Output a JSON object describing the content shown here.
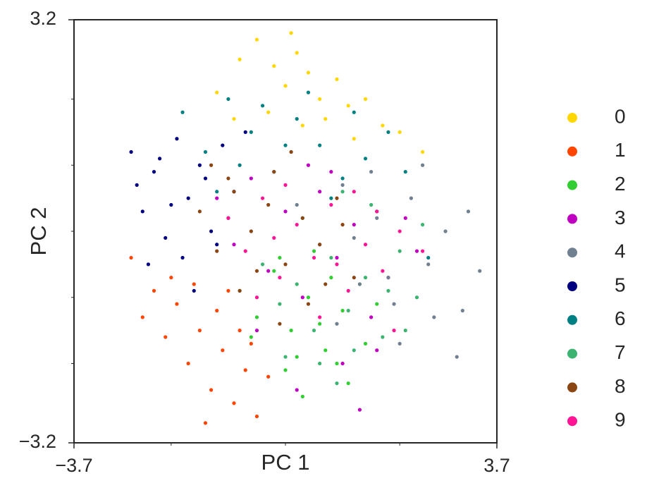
{
  "chart_data": {
    "type": "scatter",
    "xlabel": "PC 1",
    "ylabel": "PC 2",
    "xlim": [
      -3.7,
      3.7
    ],
    "ylim": [
      -3.2,
      3.2
    ],
    "xticks": [
      {
        "value": -3.7,
        "label": "−3.7"
      },
      3.7
    ],
    "yticks": [
      {
        "value": -3.2,
        "label": "−3.2"
      },
      3.2
    ],
    "xminor_ticks": [
      -2,
      0,
      2
    ],
    "yminor_ticks": [
      -2,
      -1,
      0,
      1,
      2
    ],
    "grid": false,
    "legend": "right",
    "series": [
      {
        "name": "0",
        "color": "#ffd700",
        "x": [
          -1.2,
          -0.8,
          -0.5,
          -0.2,
          0.0,
          0.2,
          0.4,
          0.6,
          0.9,
          1.1,
          1.4,
          1.7,
          2.0,
          -0.3,
          0.3,
          0.7,
          1.2,
          -0.9,
          0.1,
          2.4
        ],
        "y": [
          2.1,
          2.6,
          2.9,
          2.5,
          2.2,
          2.7,
          2.4,
          2.0,
          2.3,
          1.9,
          2.0,
          1.6,
          1.5,
          1.8,
          1.6,
          1.7,
          1.4,
          1.7,
          3.0,
          1.2
        ]
      },
      {
        "name": "1",
        "color": "#ff4500",
        "x": [
          -2.7,
          -2.5,
          -2.3,
          -2.1,
          -1.9,
          -1.7,
          -1.5,
          -1.3,
          -1.1,
          -0.9,
          -0.7,
          -0.5,
          -0.3,
          -2.0,
          -1.6,
          -1.2,
          -0.8,
          -1.4,
          -1.0,
          -0.6
        ],
        "y": [
          -0.4,
          -1.3,
          -0.9,
          -1.6,
          -1.1,
          -2.0,
          -1.5,
          -2.4,
          -1.8,
          -2.6,
          -2.1,
          -2.8,
          -2.2,
          -0.7,
          -0.8,
          -1.2,
          -1.5,
          -2.9,
          -0.9,
          -1.7
        ]
      },
      {
        "name": "2",
        "color": "#32cd32",
        "x": [
          -0.8,
          -0.5,
          -0.2,
          0.1,
          0.4,
          0.7,
          1.0,
          1.3,
          -0.6,
          0.0,
          0.3,
          0.6,
          0.9,
          1.6,
          -0.1,
          0.5,
          1.1,
          0.2,
          0.8,
          1.4
        ],
        "y": [
          -0.9,
          -1.3,
          -0.6,
          -1.5,
          -1.0,
          -1.8,
          -1.2,
          -0.8,
          -1.6,
          -2.1,
          -2.5,
          -1.4,
          -2.0,
          -1.1,
          -0.4,
          -0.3,
          -2.3,
          -1.9,
          -0.7,
          -1.7
        ]
      },
      {
        "name": "3",
        "color": "#c000c0",
        "x": [
          -1.2,
          -0.9,
          -0.6,
          -0.3,
          0.0,
          0.3,
          0.6,
          0.9,
          1.2,
          1.5,
          1.8,
          2.1,
          -0.5,
          0.4,
          1.0,
          1.6,
          2.3,
          0.2,
          0.8,
          1.3
        ],
        "y": [
          0.5,
          -0.2,
          0.8,
          -0.6,
          0.3,
          -1.0,
          0.6,
          -0.4,
          0.1,
          -1.3,
          -0.7,
          0.2,
          -1.5,
          1.0,
          -2.0,
          -1.8,
          -0.3,
          -2.4,
          0.9,
          -2.7
        ]
      },
      {
        "name": "4",
        "color": "#708090",
        "x": [
          0.2,
          0.6,
          1.0,
          1.3,
          1.6,
          1.9,
          2.2,
          2.5,
          2.8,
          3.1,
          3.4,
          0.9,
          1.5,
          2.0,
          2.6,
          3.2,
          1.2,
          1.8,
          2.4,
          3.0
        ],
        "y": [
          0.4,
          -0.2,
          0.7,
          -0.8,
          0.2,
          -1.1,
          0.5,
          -0.5,
          0.0,
          -1.2,
          -0.6,
          -1.4,
          0.9,
          -1.7,
          -1.3,
          0.3,
          -0.1,
          -0.7,
          1.0,
          -1.9
        ]
      },
      {
        "name": "5",
        "color": "#000080",
        "x": [
          -2.7,
          -2.5,
          -2.3,
          -2.1,
          -1.9,
          -1.7,
          -1.5,
          -1.3,
          -1.1,
          -0.9,
          -2.6,
          -2.2,
          -1.8,
          -1.4,
          -1.0,
          -2.4,
          -2.0,
          -1.6,
          -1.2,
          -0.7
        ],
        "y": [
          1.2,
          0.3,
          0.9,
          -0.1,
          1.4,
          0.5,
          1.0,
          0.0,
          1.3,
          0.6,
          0.7,
          1.1,
          -0.4,
          0.8,
          0.2,
          -0.5,
          0.4,
          -0.9,
          -0.2,
          1.5
        ]
      },
      {
        "name": "6",
        "color": "#008080",
        "x": [
          -1.8,
          -1.4,
          -1.0,
          -0.6,
          -0.2,
          0.2,
          0.6,
          1.0,
          1.4,
          1.8,
          -1.2,
          -0.8,
          -0.4,
          0.0,
          0.4,
          0.8,
          1.2,
          1.6,
          2.1,
          2.5
        ],
        "y": [
          1.8,
          1.2,
          2.0,
          1.5,
          0.9,
          1.7,
          1.3,
          0.8,
          1.1,
          1.5,
          0.6,
          1.0,
          1.9,
          1.3,
          2.1,
          0.5,
          1.8,
          0.3,
          0.9,
          -0.4
        ]
      },
      {
        "name": "7",
        "color": "#3cb371",
        "x": [
          -0.4,
          -0.1,
          0.2,
          0.5,
          0.8,
          1.1,
          1.4,
          1.7,
          2.0,
          2.3,
          0.0,
          0.6,
          1.2,
          1.8,
          2.4,
          0.3,
          0.9,
          1.5,
          2.1,
          1.0
        ],
        "y": [
          -0.5,
          -1.1,
          -0.8,
          -1.5,
          -0.4,
          -1.2,
          -0.7,
          -1.6,
          -0.3,
          -1.0,
          -1.9,
          -2.0,
          -1.8,
          -0.9,
          0.1,
          0.2,
          -2.3,
          0.4,
          -1.5,
          0.6
        ]
      },
      {
        "name": "8",
        "color": "#8b4513",
        "x": [
          -1.5,
          -1.2,
          -0.9,
          -0.6,
          -0.3,
          0.0,
          0.3,
          0.6,
          0.9,
          1.2,
          -1.3,
          -0.8,
          -0.2,
          0.4,
          1.0,
          -1.0,
          -0.5,
          0.1,
          0.7,
          -0.1
        ],
        "y": [
          0.3,
          -0.3,
          0.6,
          0.0,
          0.4,
          -0.5,
          0.2,
          -0.2,
          0.5,
          -0.7,
          1.0,
          -0.9,
          0.9,
          -1.1,
          0.1,
          0.8,
          -0.6,
          1.2,
          -0.8,
          -1.4
        ]
      },
      {
        "name": "9",
        "color": "#ff1493",
        "x": [
          -1.0,
          -0.7,
          -0.4,
          -0.1,
          0.2,
          0.5,
          0.8,
          1.1,
          1.4,
          1.7,
          2.0,
          -0.5,
          0.0,
          0.6,
          1.2,
          1.9,
          2.4,
          -0.2,
          0.9,
          1.6
        ],
        "y": [
          0.2,
          -0.3,
          0.5,
          -0.7,
          0.1,
          -0.4,
          0.4,
          -0.9,
          -0.2,
          -0.6,
          0.0,
          -1.0,
          0.7,
          -1.3,
          0.6,
          -1.5,
          -0.3,
          -0.1,
          -0.5,
          0.3
        ]
      }
    ]
  }
}
